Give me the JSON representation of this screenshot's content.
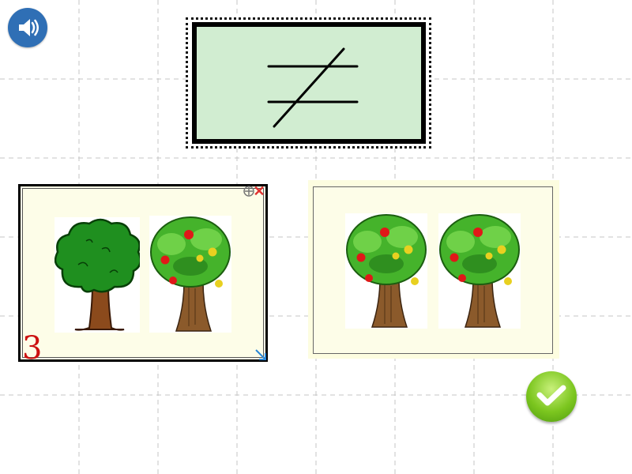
{
  "toolbar": {
    "speaker_icon": "speaker-icon"
  },
  "comparison": {
    "symbol_name": "not-equal-sign"
  },
  "cards": [
    {
      "number": "3",
      "pictures": [
        "plain-tree",
        "apple-tree"
      ]
    },
    {
      "pictures": [
        "apple-tree",
        "apple-tree"
      ]
    }
  ],
  "actions": {
    "check_icon": "checkmark-icon"
  },
  "colors": {
    "sign_background": "#d1edd1",
    "card_background": "#fdfde8",
    "speaker_button": "#2f6fb5",
    "check_button": "#7cc61f",
    "number_color": "#cc1111"
  }
}
